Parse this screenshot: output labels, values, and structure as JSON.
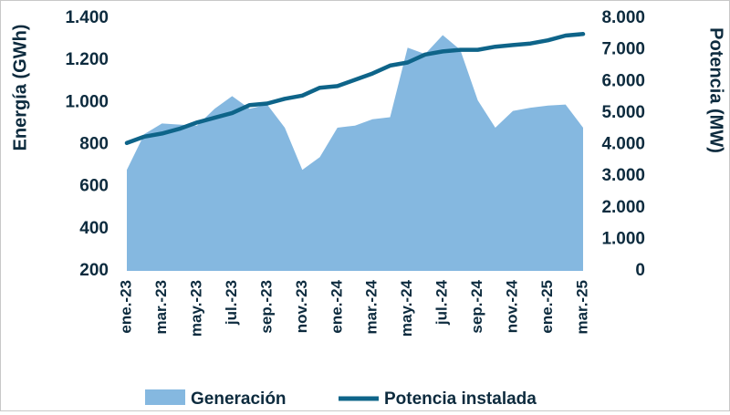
{
  "chart_data": {
    "type": "area+line",
    "x": [
      "ene.-23",
      "feb.-23",
      "mar.-23",
      "abr.-23",
      "may.-23",
      "jun.-23",
      "jul.-23",
      "ago.-23",
      "sep.-23",
      "oct.-23",
      "nov.-23",
      "dic.-23",
      "ene.-24",
      "feb.-24",
      "mar.-24",
      "abr.-24",
      "may.-24",
      "jun.-24",
      "jul.-24",
      "ago.-24",
      "sep.-24",
      "oct.-24",
      "nov.-24",
      "dic.-24",
      "ene.-25",
      "feb.-25",
      "mar.-25"
    ],
    "x_tick_labels": [
      "ene.-23",
      "mar.-23",
      "may.-23",
      "jul.-23",
      "sep.-23",
      "nov.-23",
      "ene.-24",
      "mar.-24",
      "may.-24",
      "jul.-24",
      "sep.-24",
      "nov.-24",
      "ene.-25",
      "mar.-25"
    ],
    "series": [
      {
        "name": "Generación",
        "type": "area",
        "axis": "left",
        "color": "#85b8e0",
        "values": [
          680,
          850,
          900,
          895,
          890,
          970,
          1030,
          970,
          990,
          880,
          680,
          740,
          880,
          890,
          920,
          930,
          1260,
          1230,
          1320,
          1250,
          1010,
          880,
          960,
          975,
          985,
          990,
          880
        ]
      },
      {
        "name": "Potencia instalada",
        "type": "line",
        "axis": "right",
        "color": "#0e6489",
        "values": [
          4050,
          4250,
          4350,
          4500,
          4700,
          4850,
          5000,
          5250,
          5300,
          5450,
          5550,
          5800,
          5850,
          6050,
          6250,
          6500,
          6600,
          6850,
          6950,
          7000,
          7000,
          7100,
          7150,
          7200,
          7300,
          7450,
          7500
        ]
      }
    ],
    "y_left": {
      "label": "Energía (GWh)",
      "ylim": [
        200,
        1400
      ],
      "ticks": [
        "200",
        "400",
        "600",
        "800",
        "1.000",
        "1.200",
        "1.400"
      ]
    },
    "y_right": {
      "label": "Potencia (MW)",
      "ylim": [
        0,
        8000
      ],
      "ticks": [
        "0",
        "1.000",
        "2.000",
        "3.000",
        "4.000",
        "5.000",
        "6.000",
        "7.000",
        "8.000"
      ]
    },
    "grid": false,
    "legend_position": "bottom-center"
  }
}
